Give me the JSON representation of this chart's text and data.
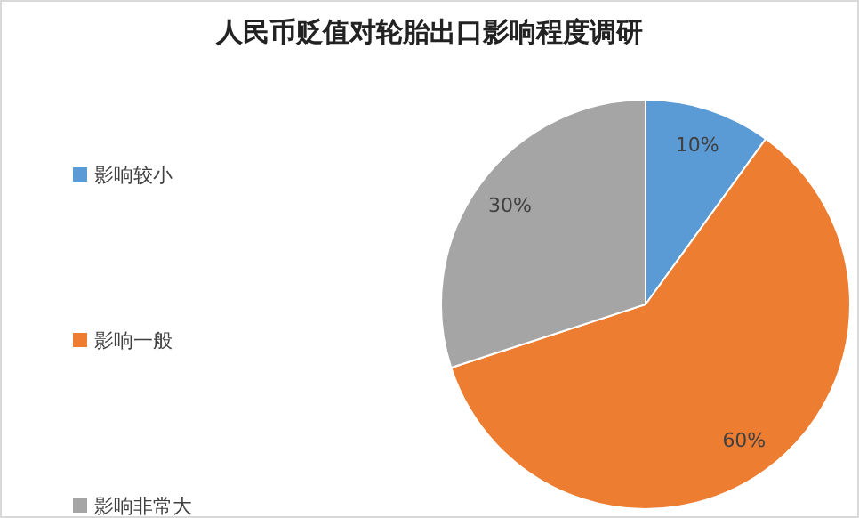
{
  "chart_data": {
    "type": "pie",
    "title": "人民币贬值对轮胎出口影响程度调研",
    "categories": [
      "影响较小",
      "影响一般",
      "影响非常大"
    ],
    "values": [
      10,
      60,
      30
    ],
    "colors": [
      "#5b9bd5",
      "#ed7d31",
      "#a5a5a5"
    ],
    "value_labels": [
      "10%",
      "60%",
      "30%"
    ],
    "legend": "left"
  }
}
